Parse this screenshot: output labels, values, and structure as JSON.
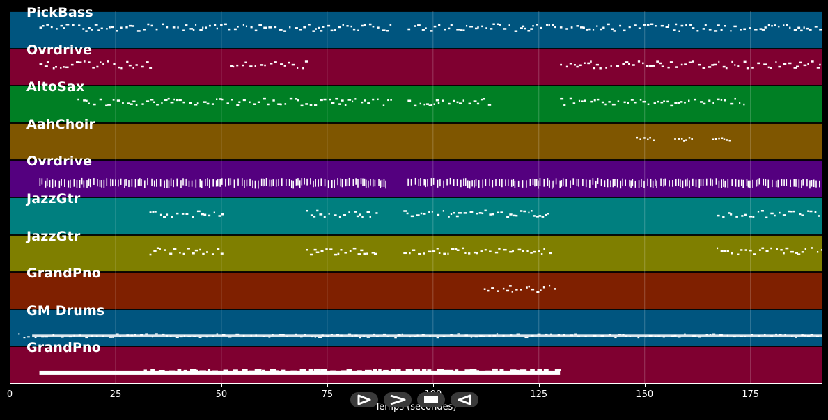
{
  "tracks": [
    {
      "label": "PickBass",
      "color": "#00557f",
      "pattern": "dashes",
      "segments": [
        [
          7,
          90
        ],
        [
          94,
          192
        ]
      ]
    },
    {
      "label": "Ovrdrive",
      "color": "#7f0030",
      "pattern": "dashes",
      "segments": [
        [
          7,
          34
        ],
        [
          52,
          70
        ],
        [
          130,
          192
        ]
      ]
    },
    {
      "label": "AltoSax",
      "color": "#007f24",
      "pattern": "dashes",
      "segments": [
        [
          16,
          90
        ],
        [
          94,
          113
        ],
        [
          130,
          174
        ]
      ]
    },
    {
      "label": "AahChoir",
      "color": "#7f5600",
      "pattern": "sparse",
      "segments": [
        [
          148,
          152
        ],
        [
          157,
          161
        ],
        [
          166,
          170
        ]
      ]
    },
    {
      "label": "Ovrdrive",
      "color": "#54007f",
      "pattern": "dense",
      "segments": [
        [
          7,
          89
        ],
        [
          94,
          192
        ]
      ]
    },
    {
      "label": "JazzGtr",
      "color": "#007f7f",
      "pattern": "dashes",
      "segments": [
        [
          33,
          50
        ],
        [
          70,
          87
        ],
        [
          93,
          128
        ],
        [
          167,
          192
        ]
      ]
    },
    {
      "label": "JazzGtr",
      "color": "#7f7f00",
      "pattern": "dashes",
      "segments": [
        [
          33,
          50
        ],
        [
          70,
          87
        ],
        [
          93,
          128
        ],
        [
          167,
          192
        ]
      ]
    },
    {
      "label": "GrandPno",
      "color": "#7f2000",
      "pattern": "dashes",
      "segments": [
        [
          112,
          129
        ]
      ]
    },
    {
      "label": "GM Drums",
      "color": "#00557f",
      "pattern": "line",
      "segments": [
        [
          2,
          192
        ]
      ]
    },
    {
      "label": "GrandPno",
      "color": "#7f0030",
      "pattern": "thick",
      "segments": [
        [
          7,
          130
        ]
      ]
    }
  ],
  "xaxis": {
    "label": "Temps (secondes)",
    "ticks": [
      "0",
      "25",
      "50",
      "75",
      "100",
      "125",
      "150",
      "175"
    ],
    "range": [
      0,
      192
    ]
  },
  "controls": [
    {
      "name": "play-forward-button",
      "icon": "play-forward-icon"
    },
    {
      "name": "fast-forward-button",
      "icon": "fast-forward-icon"
    },
    {
      "name": "stop-button",
      "icon": "stop-icon"
    },
    {
      "name": "play-reverse-button",
      "icon": "play-reverse-icon"
    }
  ]
}
